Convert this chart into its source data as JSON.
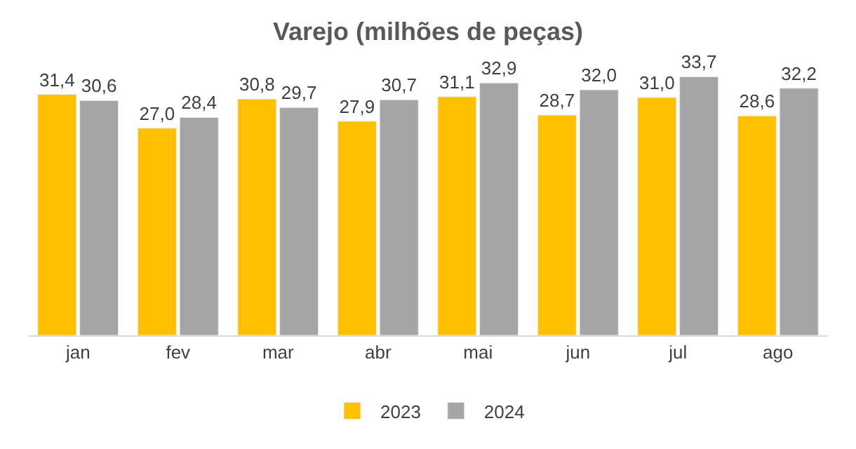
{
  "chart_data": {
    "type": "bar",
    "title": "Varejo (milhões de peças)",
    "categories": [
      "jan",
      "fev",
      "mar",
      "abr",
      "mai",
      "jun",
      "jul",
      "ago"
    ],
    "series": [
      {
        "name": "2023",
        "color": "#ffc000",
        "values": [
          31.4,
          27.0,
          30.8,
          27.9,
          31.1,
          28.7,
          31.0,
          28.6
        ],
        "value_labels": [
          "31,4",
          "27,0",
          "30,8",
          "27,9",
          "31,1",
          "28,7",
          "31,0",
          "28,6"
        ]
      },
      {
        "name": "2024",
        "color": "#a5a5a5",
        "values": [
          30.6,
          28.4,
          29.7,
          30.7,
          32.9,
          32.0,
          33.7,
          32.2
        ],
        "value_labels": [
          "30,6",
          "28,4",
          "29,7",
          "30,7",
          "32,9",
          "32,0",
          "33,7",
          "32,2"
        ]
      }
    ],
    "legend": "bottom",
    "tick_labels": "x"
  }
}
